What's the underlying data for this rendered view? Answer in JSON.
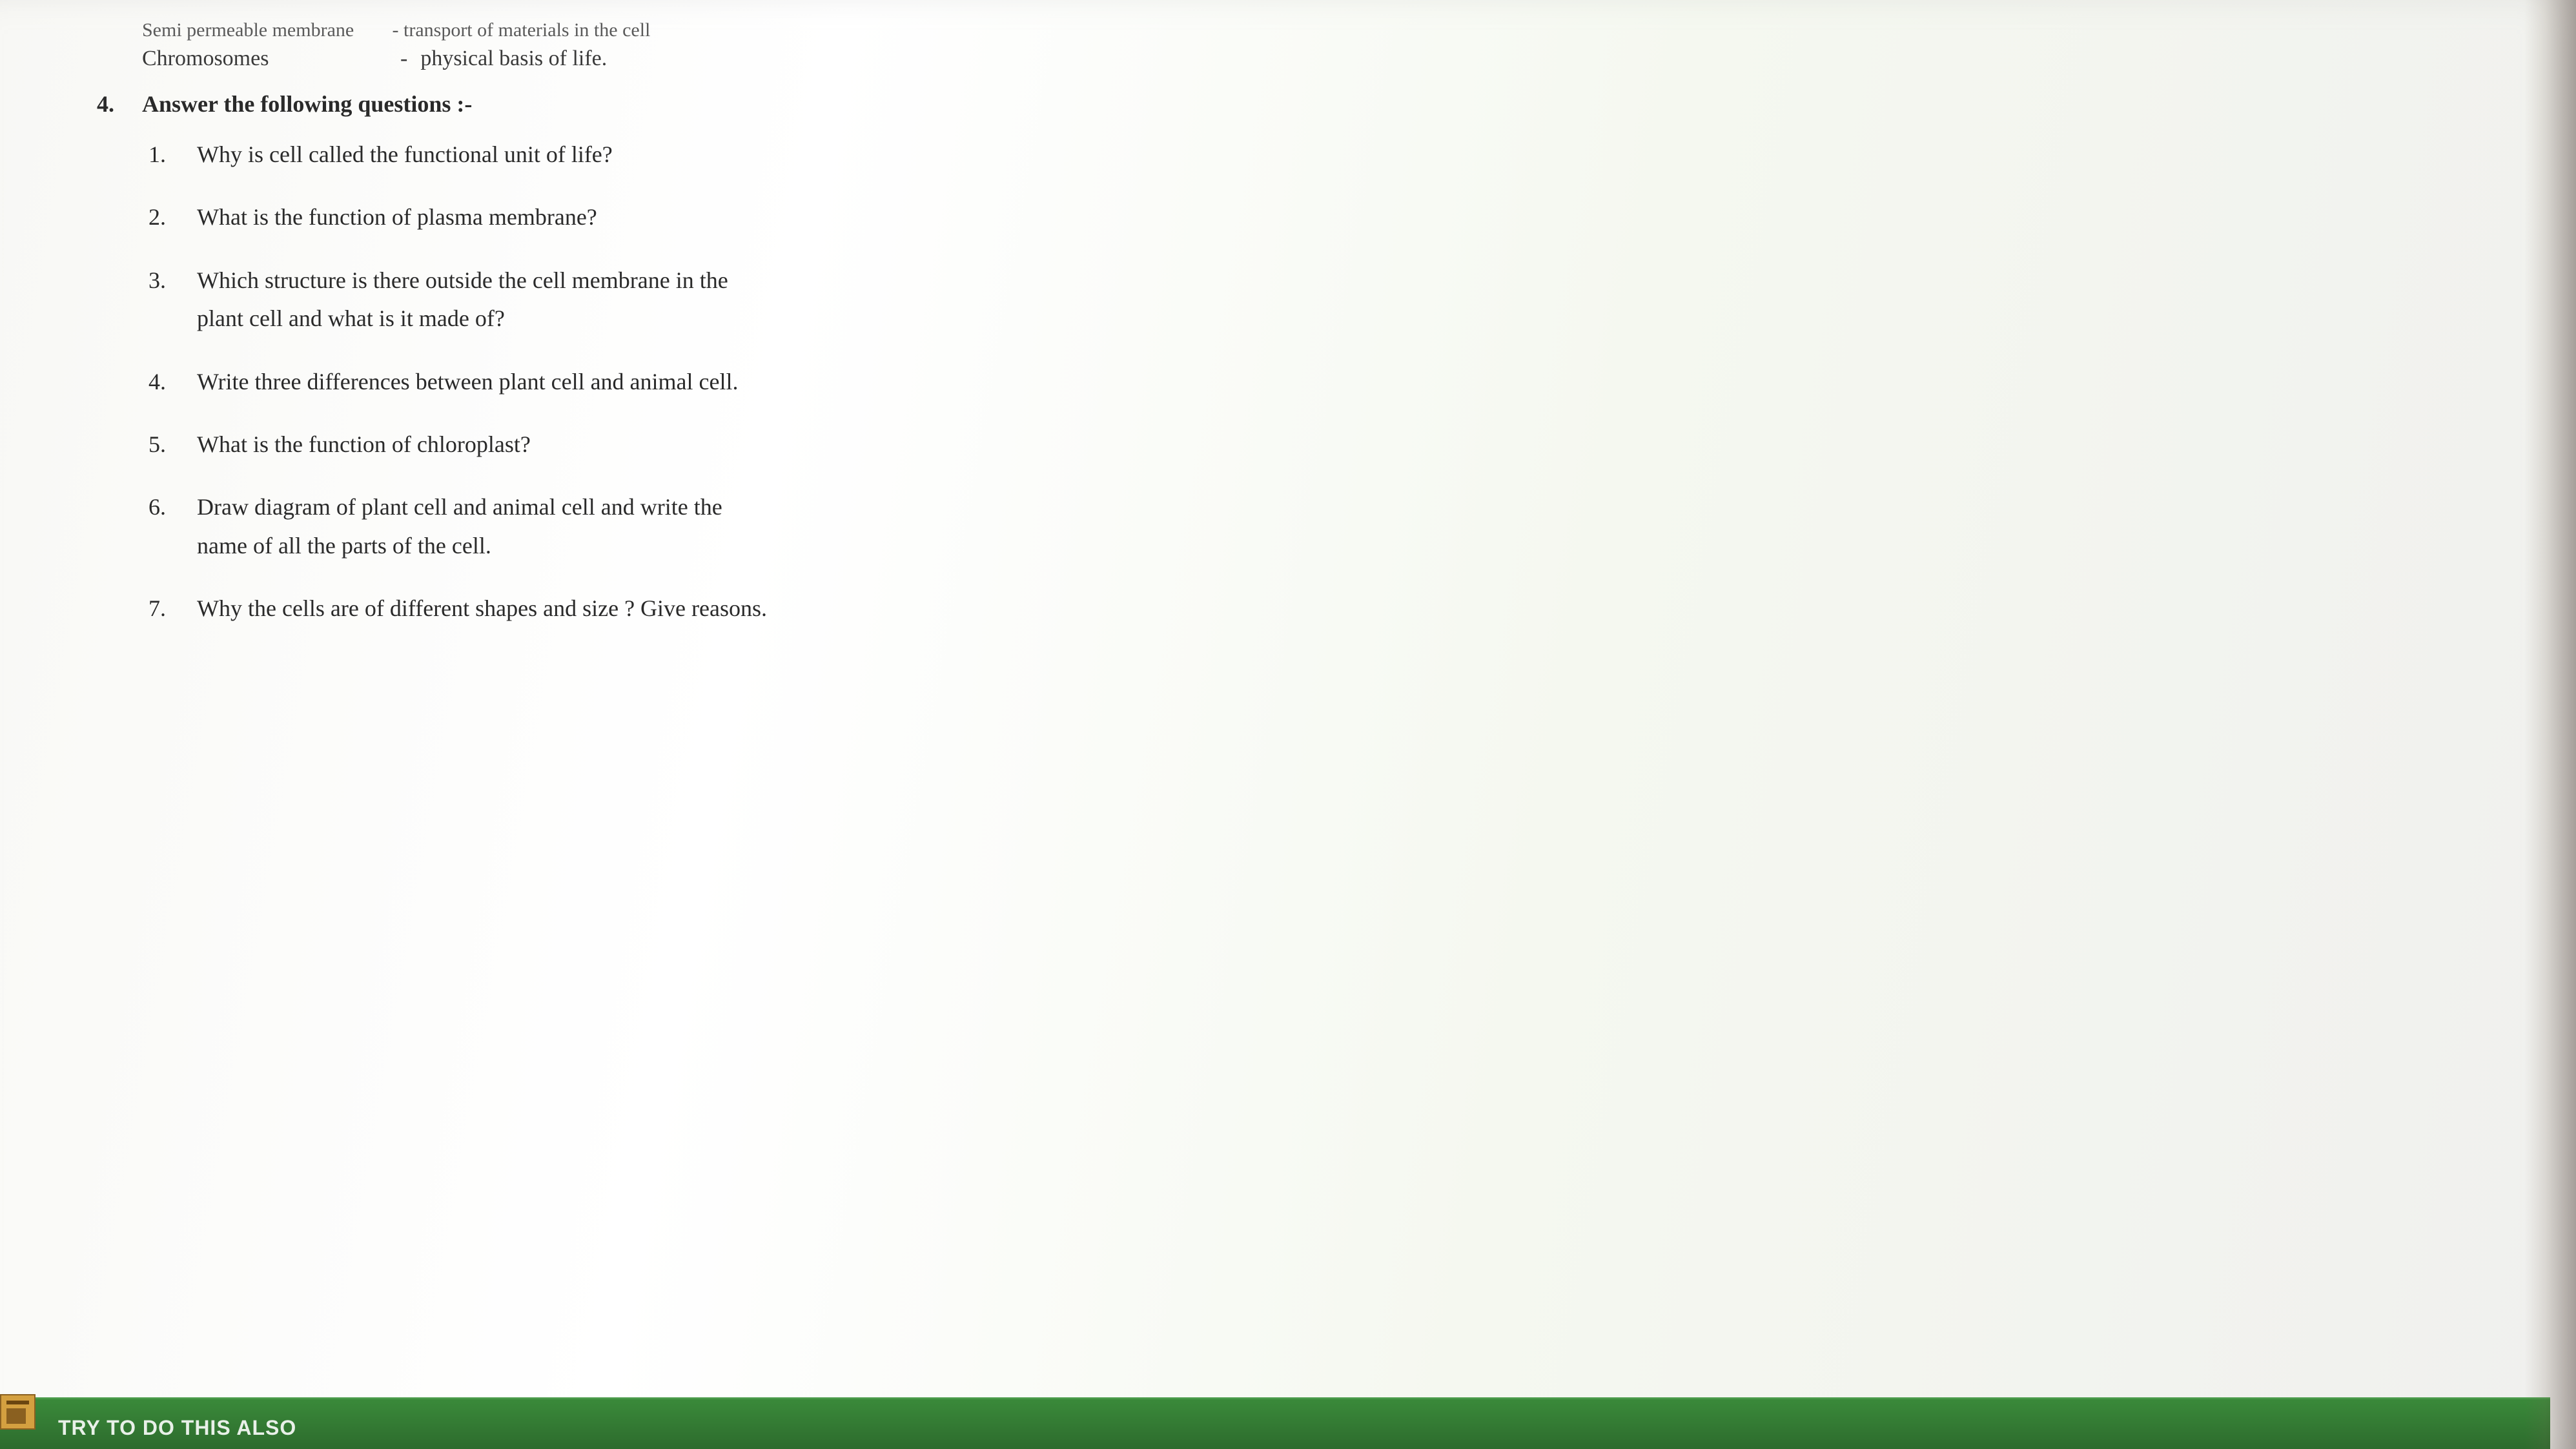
{
  "match_items": [
    {
      "left": "Semi permeable membrane",
      "right": "transport of materials in the cell",
      "cut": true
    },
    {
      "left": "Chromosomes",
      "right": "physical basis of life."
    }
  ],
  "section": {
    "number": "4.",
    "title": "Answer the following questions :-"
  },
  "questions": [
    {
      "number": "1.",
      "text": "Why is cell called the functional unit of life?"
    },
    {
      "number": "2.",
      "text": "What is the function of plasma membrane?"
    },
    {
      "number": "3.",
      "text": "Which structure is there outside the cell membrane in the plant cell and what is it made of?"
    },
    {
      "number": "4.",
      "text": "Write three differences between plant cell and animal cell."
    },
    {
      "number": "5.",
      "text": "What is the function of chloroplast?"
    },
    {
      "number": "6.",
      "text": "Draw diagram of plant cell and animal cell and write the name of all the parts of the cell."
    },
    {
      "number": "7.",
      "text": "Why the cells are of different shapes and size ? Give reasons."
    }
  ],
  "bottom_bar": {
    "label": "TRY TO DO THIS ALSO",
    "background_color": "#2d6b2d",
    "text_color": "#e8f0e8"
  },
  "styling": {
    "body_font": "Palatino Linotype, Book Antiqua, Palatino, Georgia, serif",
    "text_color": "#2a2a2a",
    "page_background": "#f8f8f5",
    "question_fontsize": 36,
    "match_fontsize": 34,
    "line_height": 1.65
  }
}
